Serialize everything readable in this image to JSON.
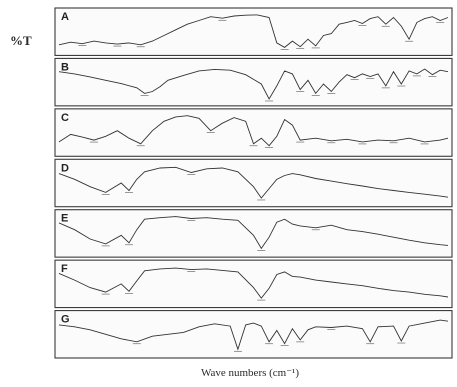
{
  "ylabel": "%T",
  "xlabel": "Wave numbers (cm⁻¹)",
  "chart_data": {
    "type": "line",
    "title": "",
    "xlabel": "Wave numbers (cm⁻¹)",
    "ylabel": "%T",
    "x_direction": "decreasing",
    "grid": false,
    "legend": "none",
    "panels": [
      {
        "label": "A",
        "x": [
          0,
          3,
          6,
          9,
          12,
          15,
          18,
          21,
          24,
          27,
          30,
          33,
          36,
          39,
          42,
          45,
          48,
          51,
          54,
          56,
          58,
          60,
          62,
          64,
          66,
          68,
          70,
          72,
          74,
          76,
          78,
          80,
          82,
          84,
          86,
          88,
          90,
          92,
          94,
          96,
          98,
          100
        ],
        "y": [
          15,
          22,
          18,
          25,
          20,
          17,
          20,
          15,
          25,
          40,
          55,
          70,
          80,
          90,
          86,
          92,
          94,
          95,
          88,
          20,
          8,
          25,
          10,
          30,
          12,
          40,
          45,
          70,
          75,
          80,
          72,
          85,
          90,
          70,
          88,
          65,
          30,
          75,
          85,
          90,
          80,
          88
        ]
      },
      {
        "label": "B",
        "x": [
          0,
          4,
          8,
          12,
          16,
          20,
          22,
          24,
          26,
          28,
          32,
          36,
          40,
          44,
          48,
          52,
          54,
          56,
          58,
          60,
          62,
          64,
          66,
          68,
          70,
          72,
          74,
          76,
          78,
          80,
          82,
          84,
          86,
          88,
          90,
          92,
          94,
          96,
          98,
          100
        ],
        "y": [
          78,
          72,
          64,
          55,
          46,
          35,
          20,
          25,
          38,
          55,
          68,
          80,
          84,
          82,
          70,
          45,
          5,
          40,
          80,
          72,
          30,
          55,
          20,
          45,
          25,
          50,
          70,
          62,
          72,
          65,
          72,
          40,
          78,
          45,
          80,
          72,
          85,
          70,
          82,
          78
        ]
      },
      {
        "label": "C",
        "x": [
          0,
          3,
          6,
          9,
          12,
          15,
          18,
          21,
          24,
          27,
          30,
          33,
          36,
          39,
          42,
          45,
          48,
          50,
          52,
          54,
          56,
          58,
          60,
          62,
          66,
          70,
          74,
          78,
          82,
          86,
          90,
          94,
          98,
          100
        ],
        "y": [
          25,
          45,
          38,
          30,
          40,
          55,
          35,
          20,
          55,
          80,
          92,
          95,
          88,
          55,
          75,
          90,
          80,
          20,
          35,
          15,
          40,
          85,
          70,
          30,
          35,
          28,
          32,
          25,
          30,
          28,
          35,
          25,
          30,
          35
        ]
      },
      {
        "label": "D",
        "x": [
          0,
          4,
          8,
          12,
          16,
          18,
          20,
          22,
          26,
          30,
          34,
          38,
          42,
          46,
          50,
          52,
          54,
          56,
          58,
          60,
          62,
          66,
          70,
          74,
          78,
          82,
          86,
          90,
          94,
          98,
          100
        ],
        "y": [
          75,
          60,
          40,
          25,
          50,
          30,
          60,
          80,
          90,
          92,
          78,
          88,
          90,
          80,
          40,
          10,
          35,
          60,
          70,
          75,
          72,
          62,
          55,
          48,
          42,
          35,
          30,
          25,
          20,
          15,
          12
        ]
      },
      {
        "label": "E",
        "x": [
          0,
          4,
          8,
          12,
          16,
          18,
          20,
          22,
          26,
          30,
          34,
          38,
          42,
          46,
          50,
          52,
          54,
          56,
          58,
          60,
          62,
          66,
          70,
          74,
          78,
          82,
          86,
          90,
          94,
          98,
          100
        ],
        "y": [
          78,
          60,
          35,
          22,
          45,
          25,
          60,
          88,
          92,
          95,
          90,
          92,
          88,
          85,
          45,
          10,
          40,
          80,
          88,
          75,
          70,
          65,
          72,
          60,
          55,
          48,
          40,
          32,
          25,
          20,
          18
        ]
      },
      {
        "label": "F",
        "x": [
          0,
          4,
          8,
          12,
          16,
          18,
          20,
          22,
          26,
          30,
          34,
          38,
          42,
          46,
          50,
          52,
          54,
          56,
          58,
          60,
          62,
          66,
          70,
          74,
          78,
          82,
          86,
          90,
          94,
          98,
          100
        ],
        "y": [
          78,
          60,
          40,
          28,
          50,
          30,
          58,
          85,
          90,
          92,
          88,
          90,
          86,
          82,
          40,
          12,
          38,
          75,
          82,
          70,
          68,
          60,
          55,
          50,
          45,
          38,
          32,
          28,
          22,
          18,
          15
        ]
      },
      {
        "label": "G",
        "x": [
          0,
          4,
          8,
          12,
          16,
          20,
          24,
          28,
          32,
          36,
          40,
          44,
          46,
          48,
          50,
          52,
          54,
          56,
          58,
          60,
          62,
          64,
          66,
          70,
          74,
          78,
          80,
          82,
          86,
          88,
          90,
          94,
          98,
          100
        ],
        "y": [
          75,
          70,
          62,
          50,
          38,
          30,
          45,
          50,
          55,
          70,
          78,
          72,
          10,
          75,
          80,
          72,
          30,
          60,
          25,
          65,
          35,
          62,
          70,
          68,
          72,
          65,
          30,
          70,
          72,
          32,
          72,
          80,
          88,
          85
        ]
      }
    ]
  }
}
